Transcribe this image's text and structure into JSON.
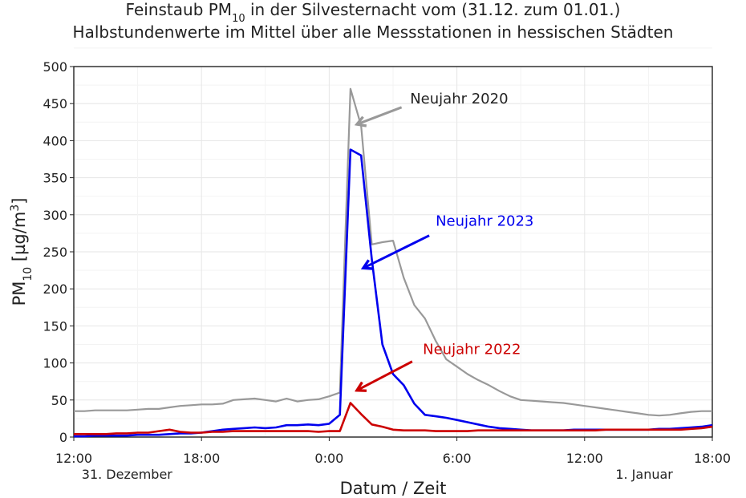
{
  "chart_data": {
    "type": "line",
    "title_line1_pre": "Feinstaub PM",
    "title_line1_sub": "10",
    "title_line1_post": " in der Silvesternacht vom (31.12. zum 01.01.)",
    "title_line2": "Halbstundenwerte im Mittel über alle Messstationen in hessischen Städten",
    "xlabel": "Datum / Zeit",
    "ylabel_pre": "PM",
    "ylabel_sub": "10",
    "ylabel_mid": " [µg/m",
    "ylabel_sup": "3",
    "ylabel_post": "]",
    "xlim": [
      0,
      30
    ],
    "ylim": [
      0,
      500
    ],
    "grid": true,
    "x_ticks": [
      {
        "x": 0,
        "label": "12:00"
      },
      {
        "x": 6,
        "label": "18:00"
      },
      {
        "x": 12,
        "label": "0:00"
      },
      {
        "x": 18,
        "label": "6:00"
      },
      {
        "x": 24,
        "label": "12:00"
      },
      {
        "x": 30,
        "label": "18:00"
      }
    ],
    "date_labels": [
      {
        "x": 2.5,
        "label": "31. Dezember"
      },
      {
        "x": 26.8,
        "label": "1. Januar"
      }
    ],
    "y_ticks": [
      0,
      50,
      100,
      150,
      200,
      250,
      300,
      350,
      400,
      450,
      500
    ],
    "series": [
      {
        "name": "Neujahr 2020",
        "color": "#999999",
        "label_x": 15.8,
        "label_y": 450,
        "arrow_from": [
          15.4,
          445
        ],
        "arrow_to": [
          13.3,
          422
        ],
        "x": [
          0,
          0.5,
          1,
          1.5,
          2,
          2.5,
          3,
          3.5,
          4,
          4.5,
          5,
          5.5,
          6,
          6.5,
          7,
          7.5,
          8,
          8.5,
          9,
          9.5,
          10,
          10.5,
          11,
          11.5,
          12,
          12.5,
          13,
          13.5,
          14,
          14.5,
          15,
          15.5,
          16,
          16.5,
          17,
          17.5,
          18,
          18.5,
          19,
          19.5,
          20,
          20.5,
          21,
          21.5,
          22,
          22.5,
          23,
          23.5,
          24,
          24.5,
          25,
          25.5,
          26,
          26.5,
          27,
          27.5,
          28,
          28.5,
          29,
          29.5,
          30
        ],
        "y": [
          35,
          35,
          36,
          36,
          36,
          36,
          37,
          38,
          38,
          40,
          42,
          43,
          44,
          44,
          45,
          50,
          51,
          52,
          50,
          48,
          52,
          48,
          50,
          51,
          55,
          60,
          470,
          420,
          260,
          263,
          265,
          215,
          178,
          160,
          130,
          105,
          95,
          85,
          77,
          70,
          62,
          55,
          50,
          49,
          48,
          47,
          46,
          44,
          42,
          40,
          38,
          36,
          34,
          32,
          30,
          29,
          30,
          32,
          34,
          35,
          35
        ]
      },
      {
        "name": "Neujahr 2023",
        "color": "#0000ee",
        "label_x": 17.0,
        "label_y": 285,
        "arrow_from": [
          16.7,
          272
        ],
        "arrow_to": [
          13.6,
          228
        ],
        "x": [
          0,
          0.5,
          1,
          1.5,
          2,
          2.5,
          3,
          3.5,
          4,
          4.5,
          5,
          5.5,
          6,
          6.5,
          7,
          7.5,
          8,
          8.5,
          9,
          9.5,
          10,
          10.5,
          11,
          11.5,
          12,
          12.5,
          13,
          13.5,
          14,
          14.5,
          15,
          15.5,
          16,
          16.5,
          17,
          17.5,
          18,
          18.5,
          19,
          19.5,
          20,
          20.5,
          21,
          21.5,
          22,
          22.5,
          23,
          23.5,
          24,
          24.5,
          25,
          25.5,
          26,
          26.5,
          27,
          27.5,
          28,
          28.5,
          29,
          29.5,
          30
        ],
        "y": [
          1,
          1,
          2,
          2,
          2,
          2,
          3,
          3,
          3,
          4,
          5,
          5,
          6,
          8,
          10,
          11,
          12,
          13,
          12,
          13,
          16,
          16,
          17,
          16,
          18,
          30,
          388,
          380,
          240,
          125,
          85,
          70,
          45,
          30,
          28,
          26,
          23,
          20,
          17,
          14,
          12,
          11,
          10,
          9,
          9,
          9,
          9,
          10,
          10,
          10,
          10,
          10,
          10,
          10,
          10,
          11,
          11,
          12,
          13,
          14,
          16
        ]
      },
      {
        "name": "Neujahr 2022",
        "color": "#cc0000",
        "label_x": 16.4,
        "label_y": 112,
        "arrow_from": [
          15.9,
          102
        ],
        "arrow_to": [
          13.3,
          63
        ],
        "x": [
          0,
          0.5,
          1,
          1.5,
          2,
          2.5,
          3,
          3.5,
          4,
          4.5,
          5,
          5.5,
          6,
          6.5,
          7,
          7.5,
          8,
          8.5,
          9,
          9.5,
          10,
          10.5,
          11,
          11.5,
          12,
          12.5,
          13,
          13.5,
          14,
          14.5,
          15,
          15.5,
          16,
          16.5,
          17,
          17.5,
          18,
          18.5,
          19,
          19.5,
          20,
          20.5,
          21,
          21.5,
          22,
          22.5,
          23,
          23.5,
          24,
          24.5,
          25,
          25.5,
          26,
          26.5,
          27,
          27.5,
          28,
          28.5,
          29,
          29.5,
          30
        ],
        "y": [
          4,
          4,
          4,
          4,
          5,
          5,
          6,
          6,
          8,
          10,
          7,
          6,
          6,
          7,
          7,
          8,
          8,
          8,
          8,
          8,
          8,
          8,
          8,
          7,
          8,
          8,
          46,
          31,
          17,
          14,
          10,
          9,
          9,
          9,
          8,
          8,
          8,
          8,
          9,
          9,
          9,
          9,
          9,
          9,
          9,
          9,
          9,
          9,
          9,
          9,
          10,
          10,
          10,
          10,
          10,
          10,
          10,
          10,
          11,
          12,
          14
        ]
      }
    ]
  }
}
